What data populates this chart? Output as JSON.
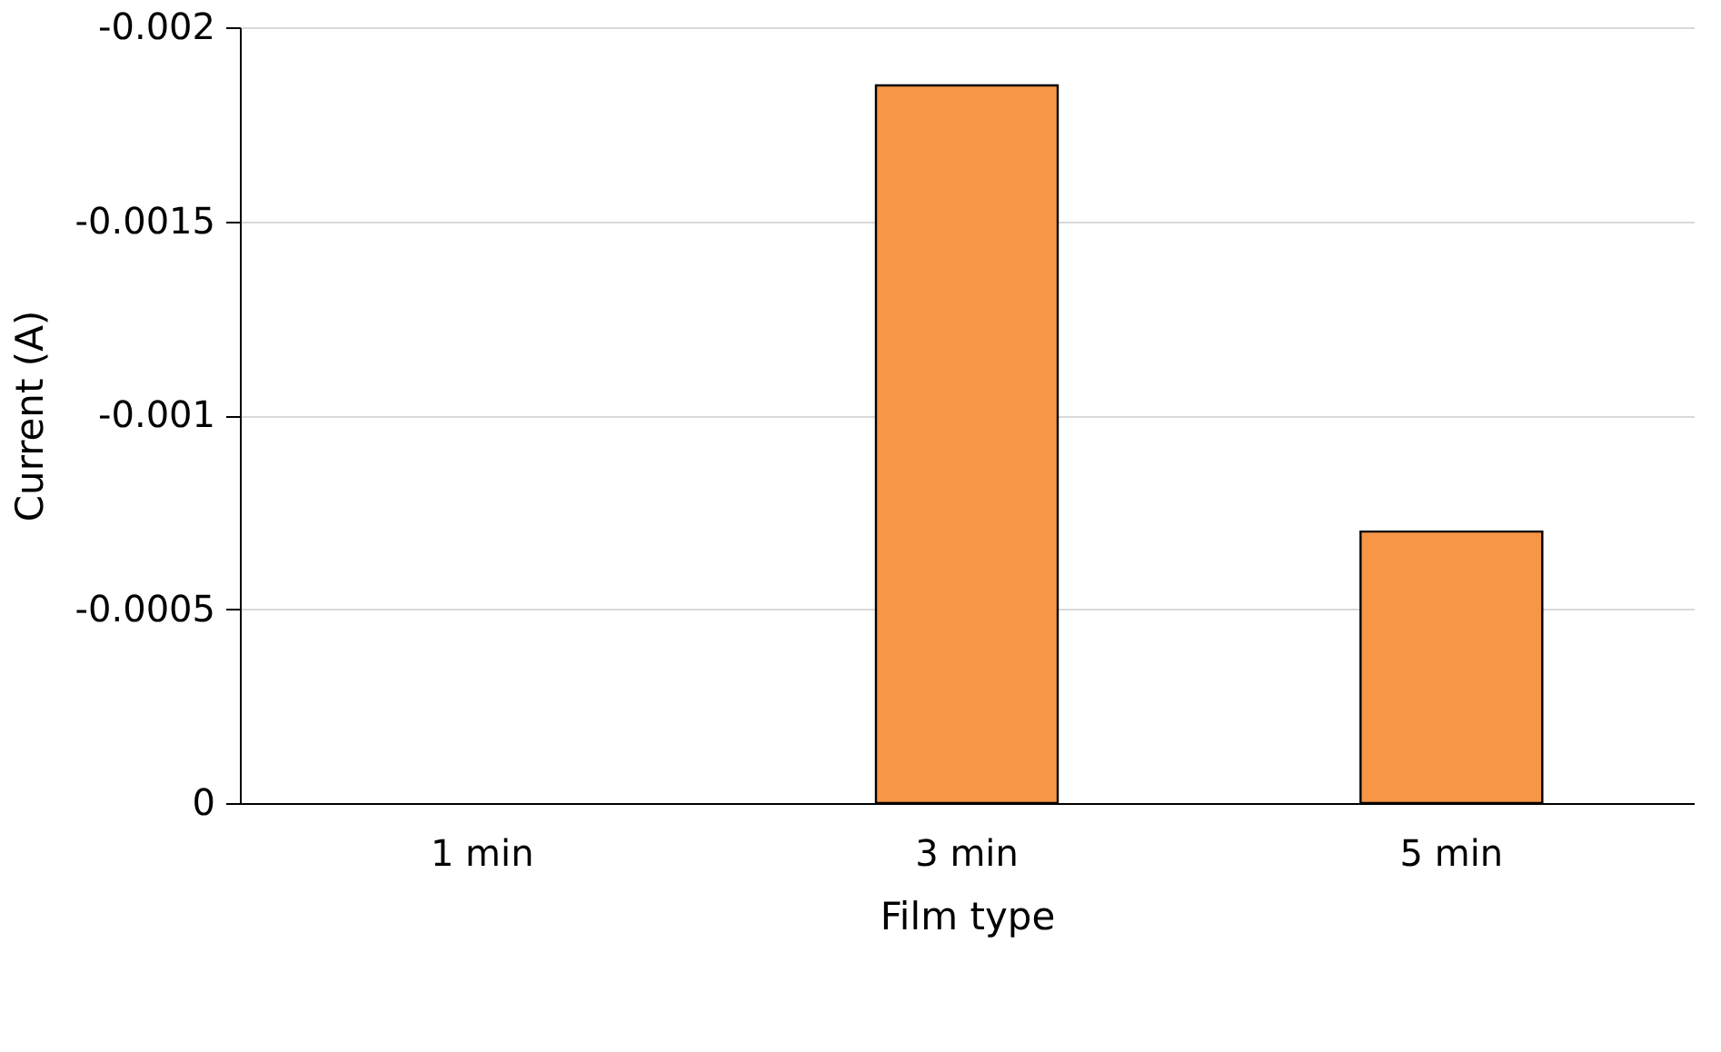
{
  "chart_data": {
    "type": "bar",
    "xlabel": "Film type",
    "ylabel": "Current (A)",
    "categories": [
      "1 min",
      "3 min",
      "5 min"
    ],
    "values": [
      null,
      -0.00185,
      -0.0007
    ],
    "color": "#f79646",
    "ylim": [
      0,
      -0.002
    ],
    "yticks": [
      0,
      -0.0005,
      -0.001,
      -0.0015,
      -0.002
    ],
    "grid": "y"
  }
}
